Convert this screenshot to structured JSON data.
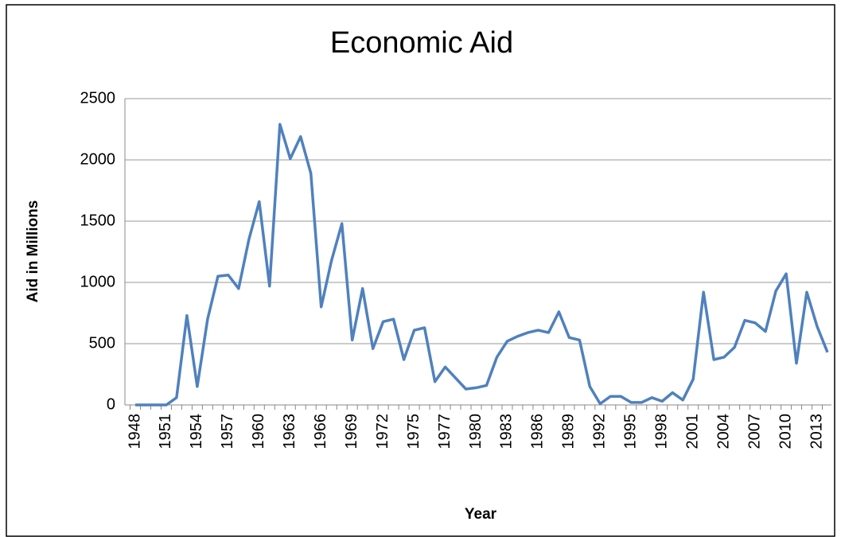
{
  "chart_data": {
    "type": "line",
    "title": "Economic Aid",
    "x_label": "Year",
    "y_label": "Aid in Millions",
    "categories": [
      "1948",
      null,
      null,
      "1951",
      null,
      null,
      "1954",
      null,
      null,
      "1957",
      null,
      null,
      "1960",
      null,
      null,
      "1963",
      null,
      null,
      "1966",
      null,
      null,
      "1969",
      null,
      null,
      "1972",
      null,
      null,
      "1975",
      null,
      null,
      "1977",
      null,
      null,
      "1980",
      null,
      null,
      "1983",
      null,
      null,
      "1986",
      null,
      null,
      "1989",
      null,
      null,
      "1992",
      null,
      null,
      "1995",
      null,
      null,
      "1998",
      null,
      null,
      "2001",
      null,
      null,
      "2004",
      null,
      null,
      "2007",
      null,
      null,
      "2010",
      null,
      null,
      "2013",
      null
    ],
    "values": [
      0,
      0,
      0,
      0,
      60,
      730,
      150,
      700,
      1050,
      1060,
      950,
      1350,
      1660,
      970,
      2290,
      2010,
      2190,
      1890,
      800,
      1180,
      1480,
      530,
      950,
      460,
      680,
      700,
      370,
      610,
      630,
      190,
      310,
      220,
      130,
      140,
      160,
      390,
      520,
      560,
      590,
      610,
      590,
      760,
      550,
      530,
      150,
      10,
      70,
      70,
      20,
      20,
      60,
      30,
      100,
      40,
      210,
      920,
      370,
      390,
      470,
      690,
      670,
      600,
      930,
      1070,
      340,
      920,
      640,
      430
    ],
    "color": "#4f81bd",
    "ylim": [
      0,
      2500
    ],
    "yticks": [
      0,
      500,
      1000,
      1500,
      2000,
      2500
    ],
    "grid": true
  }
}
